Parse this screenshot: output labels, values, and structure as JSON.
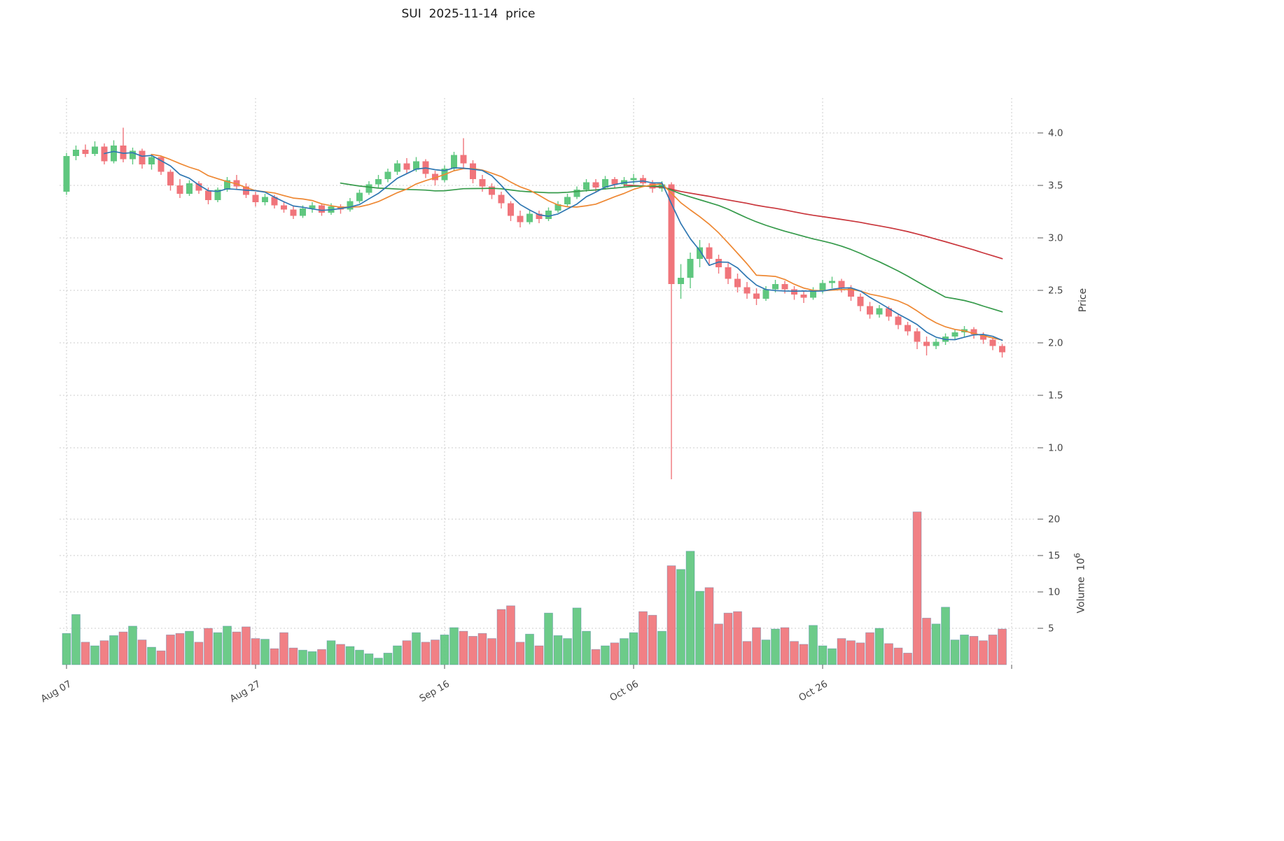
{
  "title": "SUI  2025-11-14  price",
  "price_axis": {
    "label": "Price",
    "ticks": [
      1.0,
      1.5,
      2.0,
      2.5,
      3.0,
      3.5,
      4.0
    ]
  },
  "volume_axis": {
    "label_base": "Volume  10",
    "label_exponent": "6",
    "ticks": [
      5,
      10,
      15,
      20
    ]
  },
  "colors": {
    "up": "#5fc77f",
    "down": "#f0757b",
    "volume_bar_edge": "#4a7aa8",
    "grid": "#cdcdcd",
    "tick_mark": "#555555",
    "tick_text": "#454545",
    "background": "#ffffff",
    "ma_short": "#2f77b2",
    "ma_mid": "#ee8833",
    "ma_long": "#359a4a",
    "ma_longest": "#c9353b"
  },
  "chart_data": [
    {
      "type": "candlestick",
      "title": "SUI  2025-11-14  price",
      "ylabel": "Price",
      "ylim": [
        0.6,
        4.33
      ],
      "yticks": [
        1.0,
        1.5,
        2.0,
        2.5,
        3.0,
        3.5,
        4.0
      ],
      "grid": true,
      "x_tick_labels": [
        "Aug 07",
        "Aug 27",
        "Sep 16",
        "Oct 06",
        "Oct 26"
      ],
      "x_tick_indices": [
        0,
        20,
        40,
        60,
        80
      ],
      "x_grid_indices": [
        0,
        20,
        40,
        60,
        80,
        100
      ],
      "dates": {
        "start": "2025-08-07",
        "freq": "daily",
        "count": 100
      },
      "open": [
        3.44,
        3.78,
        3.84,
        3.8,
        3.87,
        3.73,
        3.88,
        3.75,
        3.83,
        3.7,
        3.77,
        3.63,
        3.5,
        3.42,
        3.52,
        3.45,
        3.36,
        3.46,
        3.55,
        3.49,
        3.41,
        3.34,
        3.39,
        3.31,
        3.27,
        3.21,
        3.28,
        3.31,
        3.24,
        3.3,
        3.27,
        3.35,
        3.43,
        3.51,
        3.56,
        3.63,
        3.71,
        3.65,
        3.73,
        3.61,
        3.55,
        3.66,
        3.79,
        3.71,
        3.56,
        3.49,
        3.41,
        3.33,
        3.21,
        3.15,
        3.23,
        3.18,
        3.26,
        3.32,
        3.39,
        3.46,
        3.53,
        3.48,
        3.56,
        3.51,
        3.55,
        3.57,
        3.52,
        3.47,
        3.51,
        2.56,
        2.62,
        2.8,
        2.91,
        2.8,
        2.72,
        2.61,
        2.53,
        2.47,
        2.42,
        2.51,
        2.56,
        2.51,
        2.46,
        2.43,
        2.5,
        2.57,
        2.59,
        2.52,
        2.44,
        2.35,
        2.27,
        2.33,
        2.25,
        2.17,
        2.11,
        2.01,
        1.97,
        2.01,
        2.06,
        2.1,
        2.13,
        2.08,
        2.03,
        1.97
      ],
      "high": [
        3.81,
        3.88,
        3.89,
        3.92,
        3.9,
        3.93,
        4.05,
        3.86,
        3.85,
        3.8,
        3.78,
        3.65,
        3.56,
        3.55,
        3.54,
        3.48,
        3.48,
        3.58,
        3.6,
        3.52,
        3.44,
        3.42,
        3.41,
        3.35,
        3.3,
        3.31,
        3.34,
        3.33,
        3.33,
        3.32,
        3.38,
        3.46,
        3.54,
        3.6,
        3.66,
        3.74,
        3.76,
        3.77,
        3.75,
        3.64,
        3.69,
        3.82,
        3.95,
        3.74,
        3.6,
        3.52,
        3.44,
        3.35,
        3.26,
        3.26,
        3.26,
        3.29,
        3.35,
        3.42,
        3.49,
        3.56,
        3.56,
        3.59,
        3.58,
        3.58,
        3.61,
        3.6,
        3.55,
        3.54,
        3.53,
        2.75,
        2.86,
        2.98,
        2.95,
        2.84,
        2.76,
        2.66,
        2.58,
        2.52,
        2.54,
        2.6,
        2.59,
        2.54,
        2.5,
        2.53,
        2.6,
        2.63,
        2.61,
        2.55,
        2.47,
        2.39,
        2.36,
        2.35,
        2.28,
        2.2,
        2.14,
        2.06,
        2.04,
        2.09,
        2.13,
        2.16,
        2.15,
        2.1,
        2.05,
        1.99
      ],
      "low": [
        3.41,
        3.74,
        3.77,
        3.78,
        3.7,
        3.71,
        3.72,
        3.7,
        3.66,
        3.65,
        3.6,
        3.45,
        3.38,
        3.4,
        3.42,
        3.32,
        3.34,
        3.44,
        3.46,
        3.38,
        3.3,
        3.31,
        3.28,
        3.24,
        3.18,
        3.19,
        3.24,
        3.21,
        3.22,
        3.23,
        3.25,
        3.33,
        3.41,
        3.48,
        3.53,
        3.6,
        3.61,
        3.63,
        3.57,
        3.5,
        3.53,
        3.64,
        3.66,
        3.52,
        3.44,
        3.37,
        3.28,
        3.16,
        3.1,
        3.13,
        3.14,
        3.16,
        3.24,
        3.3,
        3.37,
        3.44,
        3.44,
        3.46,
        3.47,
        3.48,
        3.51,
        3.49,
        3.43,
        3.44,
        0.7,
        2.42,
        2.52,
        2.72,
        2.74,
        2.66,
        2.56,
        2.48,
        2.42,
        2.36,
        2.4,
        2.48,
        2.47,
        2.41,
        2.38,
        2.41,
        2.47,
        2.52,
        2.48,
        2.4,
        2.3,
        2.23,
        2.24,
        2.21,
        2.13,
        2.07,
        1.94,
        1.88,
        1.94,
        1.98,
        2.03,
        2.06,
        2.04,
        1.99,
        1.93,
        1.86
      ],
      "close": [
        3.78,
        3.84,
        3.8,
        3.87,
        3.73,
        3.88,
        3.75,
        3.83,
        3.7,
        3.77,
        3.63,
        3.5,
        3.42,
        3.52,
        3.45,
        3.36,
        3.46,
        3.55,
        3.49,
        3.41,
        3.34,
        3.39,
        3.31,
        3.27,
        3.21,
        3.28,
        3.31,
        3.24,
        3.3,
        3.27,
        3.35,
        3.43,
        3.51,
        3.56,
        3.63,
        3.71,
        3.65,
        3.73,
        3.61,
        3.55,
        3.66,
        3.79,
        3.71,
        3.56,
        3.49,
        3.41,
        3.33,
        3.21,
        3.15,
        3.23,
        3.18,
        3.26,
        3.32,
        3.39,
        3.46,
        3.53,
        3.48,
        3.56,
        3.51,
        3.55,
        3.57,
        3.52,
        3.47,
        3.51,
        2.56,
        2.62,
        2.8,
        2.91,
        2.8,
        2.72,
        2.61,
        2.53,
        2.47,
        2.42,
        2.51,
        2.56,
        2.51,
        2.46,
        2.43,
        2.5,
        2.57,
        2.59,
        2.52,
        2.44,
        2.35,
        2.27,
        2.33,
        2.25,
        2.17,
        2.11,
        2.01,
        1.97,
        2.01,
        2.06,
        2.1,
        2.13,
        2.08,
        2.03,
        1.97,
        1.91
      ],
      "overlays": [
        {
          "name": "sma5",
          "window": 5,
          "color": "#2f77b2"
        },
        {
          "name": "sma10",
          "window": 10,
          "color": "#ee8833"
        },
        {
          "name": "sma30",
          "window": 30,
          "color": "#359a4a"
        },
        {
          "name": "sma60",
          "window": 60,
          "color": "#c9353b"
        }
      ]
    },
    {
      "type": "bar",
      "ylabel": "Volume 10^6",
      "ylim": [
        0,
        23
      ],
      "yticks": [
        5,
        10,
        15,
        20
      ],
      "grid": true,
      "color_rule": "green if close >= open else red",
      "values": [
        4.3,
        6.9,
        3.1,
        2.6,
        3.3,
        4.0,
        4.5,
        5.3,
        3.4,
        2.4,
        1.9,
        4.1,
        4.3,
        4.6,
        3.1,
        5.0,
        4.4,
        5.3,
        4.5,
        5.2,
        3.6,
        3.5,
        2.2,
        4.4,
        2.3,
        2.0,
        1.8,
        2.1,
        3.3,
        2.8,
        2.5,
        2.0,
        1.5,
        0.9,
        1.6,
        2.6,
        3.3,
        4.4,
        3.1,
        3.4,
        4.1,
        5.1,
        4.6,
        3.9,
        4.3,
        3.6,
        7.6,
        8.1,
        3.1,
        4.2,
        2.6,
        7.1,
        4.0,
        3.6,
        7.8,
        4.6,
        2.1,
        2.6,
        3.0,
        3.6,
        4.4,
        7.3,
        6.8,
        4.6,
        13.6,
        13.1,
        15.6,
        10.1,
        10.6,
        5.6,
        7.1,
        7.3,
        3.2,
        5.1,
        3.4,
        4.9,
        5.1,
        3.2,
        2.8,
        5.4,
        2.6,
        2.2,
        3.6,
        3.3,
        3.0,
        4.4,
        5.0,
        2.9,
        2.3,
        1.6,
        21.0,
        6.4,
        5.6,
        7.9,
        3.4,
        4.1,
        3.9,
        3.3,
        4.1,
        4.9
      ]
    }
  ]
}
